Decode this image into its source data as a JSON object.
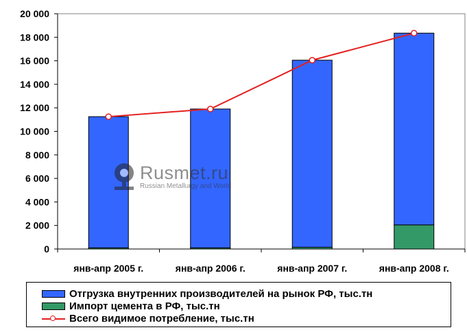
{
  "chart_data": {
    "type": "bar",
    "stacked": true,
    "categories": [
      "янв-апр 2005 г.",
      "янв-апр 2006 г.",
      "янв-апр 2007 г.",
      "янв-апр 2008 г."
    ],
    "series": [
      {
        "name": "Отгрузка внутренних производителей на рынок РФ, тыс.тн",
        "kind": "bar",
        "color": "#3366ff",
        "values": [
          11150,
          11800,
          15900,
          16300
        ]
      },
      {
        "name": "Импорт цемента в РФ, тыс.тн",
        "kind": "bar",
        "color": "#339966",
        "values": [
          100,
          100,
          150,
          2050
        ]
      },
      {
        "name": "Всего видимое потребление, тыс.тн",
        "kind": "line",
        "color": "#e41e1e",
        "values": [
          11250,
          11900,
          16050,
          18350
        ]
      }
    ],
    "y_ticks": [
      "0",
      "2 000",
      "4 000",
      "6 000",
      "8 000",
      "10 000",
      "12 000",
      "14 000",
      "16 000",
      "18 000",
      "20 000"
    ],
    "ylim": [
      0,
      20000
    ],
    "grid": false,
    "legend_position": "bottom",
    "plot_background": "#ffffff"
  },
  "watermark": {
    "main": "Rusmet.ru",
    "sub": "Russian Metallurgy and World",
    "icon": "rusmet-logo-icon"
  }
}
